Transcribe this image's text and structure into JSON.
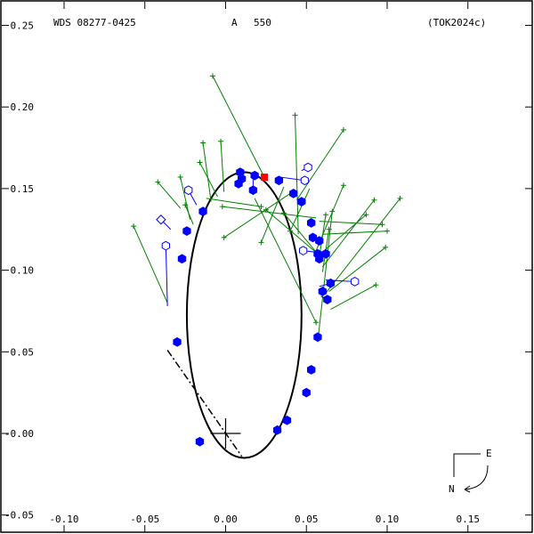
{
  "header": {
    "star_id": "WDS 08277-0425",
    "component": "A",
    "count": "550",
    "reference": "(TOK2024c)"
  },
  "compass": {
    "east_label": "E",
    "north_label": "N"
  },
  "colors": {
    "orbit": "#000000",
    "data_filled": "#0000ff",
    "data_open": "#0000ff",
    "residual_green": "#008000",
    "residual_blue": "#0000ff",
    "highlight": "#ff0000",
    "frame": "#000000"
  },
  "chart_data": {
    "type": "scatter",
    "title": "",
    "xlabel": "",
    "ylabel": "",
    "xlim": [
      -0.1,
      0.18
    ],
    "ylim": [
      -0.05,
      0.26
    ],
    "x_ticks": [
      -0.1,
      -0.05,
      0.0,
      0.05,
      0.1,
      0.15
    ],
    "x_tick_labels": [
      "-0.10",
      "-0.05",
      "0.00",
      "0.05",
      "0.10",
      "0.15"
    ],
    "y_ticks": [
      -0.05,
      0.0,
      0.05,
      0.1,
      0.15,
      0.2,
      0.25
    ],
    "y_tick_labels": [
      "-0.05",
      "-0.00",
      "0.05",
      "0.10",
      "0.15",
      "0.20",
      "0.25"
    ],
    "origin_marker": [
      0.0,
      0.0
    ],
    "orbit_ellipse": {
      "center": [
        0.0115,
        0.0725
      ],
      "semi_x": 0.0355,
      "semi_y": 0.0875
    },
    "node_line": [
      [
        -0.036,
        0.051
      ],
      [
        0.01,
        -0.014
      ]
    ],
    "highlight_point": [
      0.024,
      0.157
    ],
    "filled_points": [
      {
        "obs": [
          0.009,
          0.16
        ],
        "fit": [
          0.009,
          0.159
        ]
      },
      {
        "obs": [
          0.018,
          0.158
        ],
        "fit": [
          0.017,
          0.158
        ]
      },
      {
        "obs": [
          0.01,
          0.156
        ],
        "fit": [
          0.01,
          0.157
        ]
      },
      {
        "obs": [
          0.008,
          0.153
        ],
        "fit": [
          0.008,
          0.155
        ]
      },
      {
        "obs": [
          0.017,
          0.149
        ],
        "fit": [
          0.017,
          0.158
        ]
      },
      {
        "obs": [
          0.033,
          0.155
        ],
        "fit": [
          0.032,
          0.156
        ]
      },
      {
        "obs": [
          0.042,
          0.147
        ],
        "fit": [
          0.042,
          0.148
        ]
      },
      {
        "obs": [
          0.047,
          0.142
        ],
        "fit": [
          0.047,
          0.142
        ]
      },
      {
        "obs": [
          -0.014,
          0.136
        ],
        "fit": [
          -0.014,
          0.137
        ]
      },
      {
        "obs": [
          0.053,
          0.129
        ],
        "fit": [
          0.053,
          0.13
        ]
      },
      {
        "obs": [
          -0.024,
          0.124
        ],
        "fit": [
          -0.024,
          0.125
        ]
      },
      {
        "obs": [
          0.054,
          0.12
        ],
        "fit": [
          0.054,
          0.121
        ]
      },
      {
        "obs": [
          0.058,
          0.118
        ],
        "fit": [
          0.057,
          0.118
        ]
      },
      {
        "obs": [
          0.057,
          0.11
        ],
        "fit": [
          0.057,
          0.111
        ]
      },
      {
        "obs": [
          0.062,
          0.11
        ],
        "fit": [
          0.058,
          0.109
        ]
      },
      {
        "obs": [
          0.058,
          0.107
        ],
        "fit": [
          0.058,
          0.107
        ]
      },
      {
        "obs": [
          -0.027,
          0.107
        ],
        "fit": [
          -0.027,
          0.107
        ]
      },
      {
        "obs": [
          0.065,
          0.092
        ],
        "fit": [
          0.058,
          0.09
        ]
      },
      {
        "obs": [
          0.06,
          0.087
        ],
        "fit": [
          0.059,
          0.087
        ]
      },
      {
        "obs": [
          0.063,
          0.082
        ],
        "fit": [
          0.059,
          0.084
        ]
      },
      {
        "obs": [
          -0.03,
          0.056
        ],
        "fit": [
          -0.031,
          0.056
        ]
      },
      {
        "obs": [
          0.057,
          0.059
        ],
        "fit": [
          0.057,
          0.059
        ]
      },
      {
        "obs": [
          0.053,
          0.039
        ],
        "fit": [
          0.053,
          0.039
        ]
      },
      {
        "obs": [
          0.05,
          0.025
        ],
        "fit": [
          0.05,
          0.025
        ]
      },
      {
        "obs": [
          0.038,
          0.008
        ],
        "fit": [
          0.038,
          0.008
        ]
      },
      {
        "obs": [
          0.032,
          0.002
        ],
        "fit": [
          0.032,
          0.002
        ]
      },
      {
        "obs": [
          -0.016,
          -0.005
        ],
        "fit": [
          -0.016,
          -0.005
        ]
      }
    ],
    "open_points": [
      {
        "obs": [
          0.051,
          0.163
        ],
        "fit": [
          0.047,
          0.161
        ],
        "shape": "hexagon"
      },
      {
        "obs": [
          0.049,
          0.155
        ],
        "fit": [
          0.034,
          0.157
        ],
        "shape": "hexagon"
      },
      {
        "obs": [
          -0.023,
          0.149
        ],
        "fit": [
          -0.018,
          0.14
        ],
        "shape": "hexagon"
      },
      {
        "obs": [
          -0.04,
          0.131
        ],
        "fit": [
          -0.034,
          0.125
        ],
        "shape": "diamond"
      },
      {
        "obs": [
          -0.037,
          0.115
        ],
        "fit": [
          -0.036,
          0.078
        ],
        "shape": "hexagon"
      },
      {
        "obs": [
          0.048,
          0.112
        ],
        "fit": [
          0.056,
          0.111
        ],
        "shape": "hexagon"
      },
      {
        "obs": [
          0.08,
          0.093
        ],
        "fit": [
          0.062,
          0.094
        ],
        "shape": "hexagon"
      }
    ],
    "green_points": [
      {
        "obs": [
          -0.008,
          0.219
        ],
        "fit": [
          0.025,
          0.155
        ]
      },
      {
        "obs": [
          0.043,
          0.195
        ],
        "fit": [
          0.045,
          0.122
        ]
      },
      {
        "obs": [
          0.073,
          0.186
        ],
        "fit": [
          0.044,
          0.143
        ]
      },
      {
        "obs": [
          -0.016,
          0.166
        ],
        "fit": [
          -0.005,
          0.145
        ]
      },
      {
        "obs": [
          -0.014,
          0.178
        ],
        "fit": [
          -0.009,
          0.142
        ]
      },
      {
        "obs": [
          -0.003,
          0.179
        ],
        "fit": [
          -0.001,
          0.148
        ]
      },
      {
        "obs": [
          -0.057,
          0.127
        ],
        "fit": [
          -0.036,
          0.08
        ]
      },
      {
        "obs": [
          -0.042,
          0.154
        ],
        "fit": [
          -0.028,
          0.138
        ]
      },
      {
        "obs": [
          -0.028,
          0.157
        ],
        "fit": [
          -0.022,
          0.131
        ]
      },
      {
        "obs": [
          -0.025,
          0.14
        ],
        "fit": [
          -0.02,
          0.128
        ]
      },
      {
        "obs": [
          -0.002,
          0.139
        ],
        "fit": [
          0.056,
          0.132
        ]
      },
      {
        "obs": [
          -0.001,
          0.12
        ],
        "fit": [
          0.04,
          0.147
        ]
      },
      {
        "obs": [
          0.022,
          0.117
        ],
        "fit": [
          0.036,
          0.151
        ]
      },
      {
        "obs": [
          0.025,
          0.137
        ],
        "fit": [
          0.057,
          0.11
        ]
      },
      {
        "obs": [
          0.036,
          0.135
        ],
        "fit": [
          0.057,
          0.11
        ]
      },
      {
        "obs": [
          0.04,
          0.124
        ],
        "fit": [
          0.052,
          0.15
        ]
      },
      {
        "obs": [
          0.073,
          0.152
        ],
        "fit": [
          0.056,
          0.112
        ]
      },
      {
        "obs": [
          0.062,
          0.134
        ],
        "fit": [
          0.058,
          0.108
        ]
      },
      {
        "obs": [
          0.064,
          0.125
        ],
        "fit": [
          0.06,
          0.099
        ]
      },
      {
        "obs": [
          0.066,
          0.136
        ],
        "fit": [
          0.057,
          0.056
        ]
      },
      {
        "obs": [
          0.087,
          0.134
        ],
        "fit": [
          0.061,
          0.112
        ]
      },
      {
        "obs": [
          0.092,
          0.143
        ],
        "fit": [
          0.06,
          0.102
        ]
      },
      {
        "obs": [
          0.097,
          0.128
        ],
        "fit": [
          0.058,
          0.13
        ]
      },
      {
        "obs": [
          0.1,
          0.124
        ],
        "fit": [
          0.06,
          0.122
        ]
      },
      {
        "obs": [
          0.108,
          0.144
        ],
        "fit": [
          0.062,
          0.086
        ]
      },
      {
        "obs": [
          0.099,
          0.114
        ],
        "fit": [
          0.064,
          0.087
        ]
      },
      {
        "obs": [
          0.093,
          0.091
        ],
        "fit": [
          0.065,
          0.076
        ]
      },
      {
        "obs": [
          0.022,
          0.139
        ],
        "fit": [
          -0.012,
          0.144
        ]
      },
      {
        "obs": [
          0.056,
          0.068
        ],
        "fit": [
          0.018,
          0.144
        ]
      }
    ]
  }
}
